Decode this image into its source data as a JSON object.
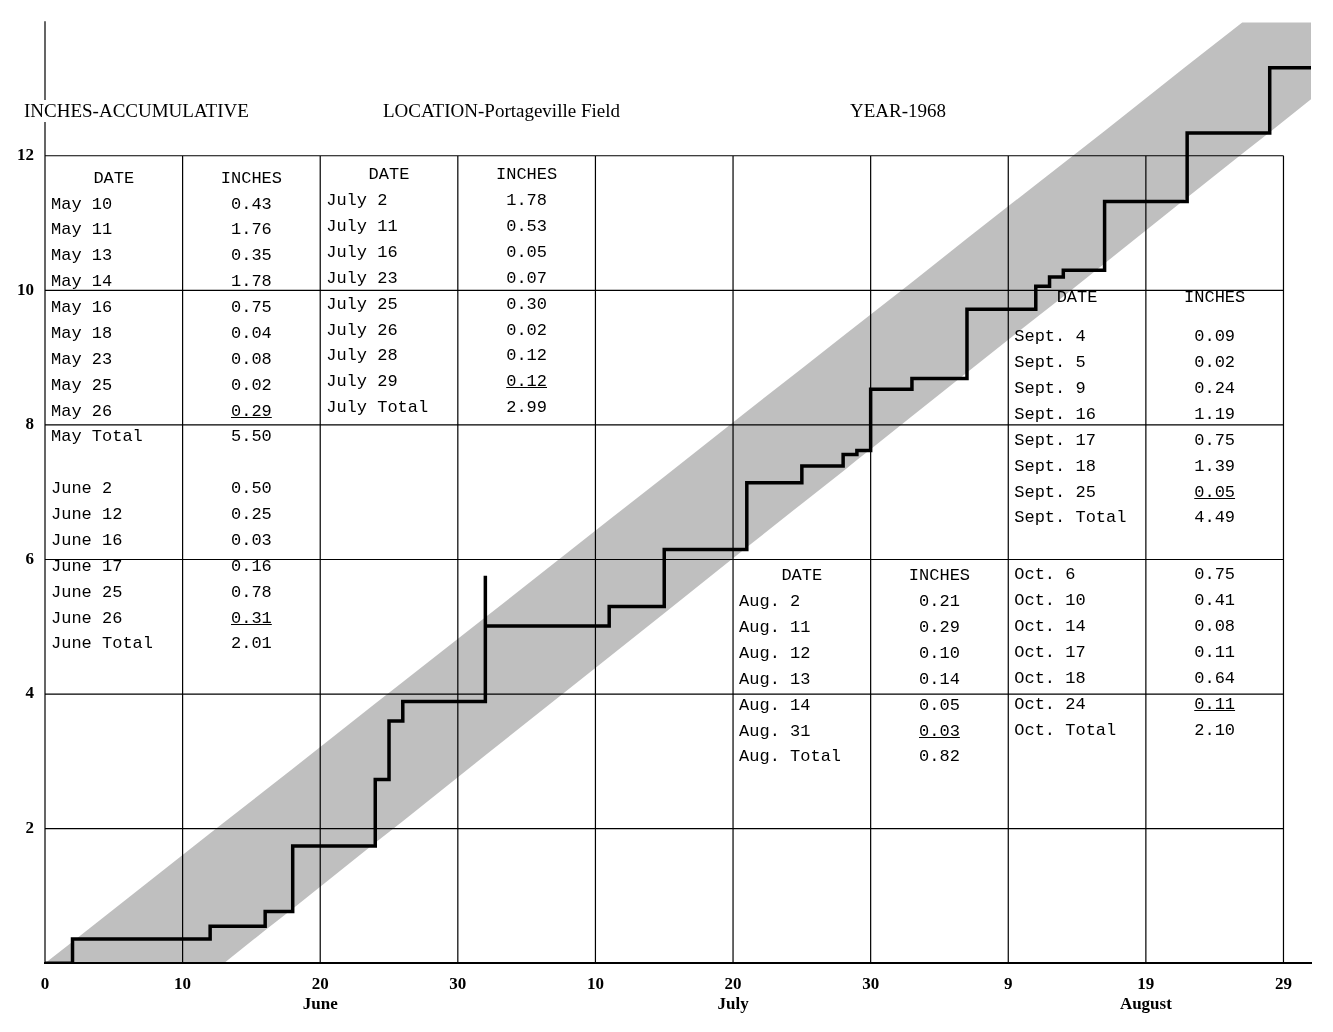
{
  "chart_data": {
    "type": "step",
    "title": "LOCATION-Portageville Field",
    "subtitle": "YEAR-1968",
    "ylabel": "INCHES-ACCUMULATIVE",
    "xlim": [
      "--05-31",
      "--08-31"
    ],
    "ylim": [
      0,
      14
    ],
    "xticks": [
      {
        "value": "--05-31",
        "label": "0"
      },
      {
        "value": "--06-10",
        "label": "10"
      },
      {
        "value": "--06-20",
        "label": "20\nJune"
      },
      {
        "value": "--06-30",
        "label": "30"
      },
      {
        "value": "--07-10",
        "label": "10"
      },
      {
        "value": "--07-20",
        "label": "20\nJuly"
      },
      {
        "value": "--07-30",
        "label": "30"
      },
      {
        "value": "--08-09",
        "label": "9"
      },
      {
        "value": "--08-19",
        "label": "19\nAugust"
      },
      {
        "value": "--08-29",
        "label": "29"
      }
    ],
    "yticks": [
      {
        "value": 0,
        "label": null
      },
      2,
      4,
      6,
      8,
      10,
      12
    ],
    "grid": true,
    "series": [
      {
        "color": "#000000",
        "x": [
          "--05-31",
          "--06-02",
          "--06-12",
          "--06-13",
          "--06-16",
          "--06-18",
          "--06-24",
          "--06-25",
          "--06-26",
          "--07-02",
          "--07-02",
          "--07-11",
          "--07-15",
          "--07-21",
          "--07-25",
          "--07-28",
          "--07-29",
          "--07-30",
          "--08-02",
          "--08-06",
          "--08-11",
          "--08-12",
          "--08-13",
          "--08-16",
          "--08-22",
          "--08-26",
          "--08-28",
          "--08-31"
        ],
        "values": [
          0,
          0.36,
          0.55,
          0.55,
          0.77,
          1.74,
          2.73,
          3.6,
          3.89,
          5.76,
          5.01,
          5.3,
          6.15,
          7.14,
          7.39,
          7.56,
          7.62,
          8.53,
          8.69,
          9.72,
          10.06,
          10.2,
          10.3,
          11.32,
          12.34,
          12.34,
          13.31,
          13.31
        ],
        "upper": [
          0,
          0.32,
          1.93,
          2.09,
          2.57,
          2.89,
          3.86,
          4.02,
          4.18,
          5.14,
          5.14,
          6.59,
          7.23,
          8.2,
          8.84,
          9.32,
          9.48,
          9.64,
          10.12,
          10.77,
          11.57,
          11.73,
          11.89,
          12.37,
          13.34,
          13.98,
          13.98,
          13.98
        ],
        "lower": [
          0,
          0,
          0,
          0,
          0.49,
          0.81,
          1.79,
          1.95,
          2.11,
          3.09,
          3.09,
          4.55,
          5.2,
          6.18,
          6.83,
          7.31,
          7.48,
          7.64,
          8.13,
          8.78,
          9.59,
          9.75,
          9.91,
          10.4,
          11.38,
          12.03,
          12.35,
          12.84
        ]
      }
    ],
    "annotations": [
      "DATE",
      "INCHES",
      "May 10",
      "0.43",
      "May 11",
      "1.76",
      "May 13",
      "0.35",
      "May 14",
      "1.78",
      "May 16",
      "0.75",
      "May 18",
      "0.04",
      "May 23",
      "0.08",
      "May 25",
      "0.02",
      "May 26",
      "0.29",
      "May Total",
      "5.50",
      "June 2",
      "0.50",
      "June 12",
      "0.25",
      "June 16",
      "0.03",
      "June 17",
      "0.16",
      "June 25",
      "0.78",
      "June 26",
      "0.31",
      "June Total",
      "2.01",
      "DATE",
      "INCHES",
      "July 2",
      "1.78",
      "July 11",
      "0.53",
      "July 16",
      "0.05",
      "July 23",
      "0.07",
      "July 25",
      "0.30",
      "July 26",
      "0.02",
      "July 28",
      "0.12",
      "July 29",
      "0.12",
      "July Total",
      "2.99",
      "DATE",
      "INCHES",
      "Aug. 2",
      "0.21",
      "Aug. 11",
      "0.29",
      "Aug. 12",
      "0.10",
      "Aug. 13",
      "0.14",
      "Aug. 14",
      "0.05",
      "Aug. 31",
      "0.03",
      "Aug. Total",
      "0.82",
      "DATE",
      "INCHES",
      "Sept. 4",
      "0.09",
      "Sept. 5",
      "0.02",
      "Sept. 9",
      "0.24",
      "Sept. 16",
      "1.19",
      "Sept. 17",
      "0.75",
      "Sept. 18",
      "1.39",
      "Sept. 25",
      "0.05",
      "Sept. Total",
      "4.49",
      "Oct. 6",
      "0.75",
      "Oct. 10",
      "0.41",
      "Oct. 14",
      "0.08",
      "Oct. 17",
      "0.11",
      "Oct. 18",
      "0.64",
      "Oct. 24",
      "0.11",
      "Oct. Total",
      "2.10"
    ]
  }
}
